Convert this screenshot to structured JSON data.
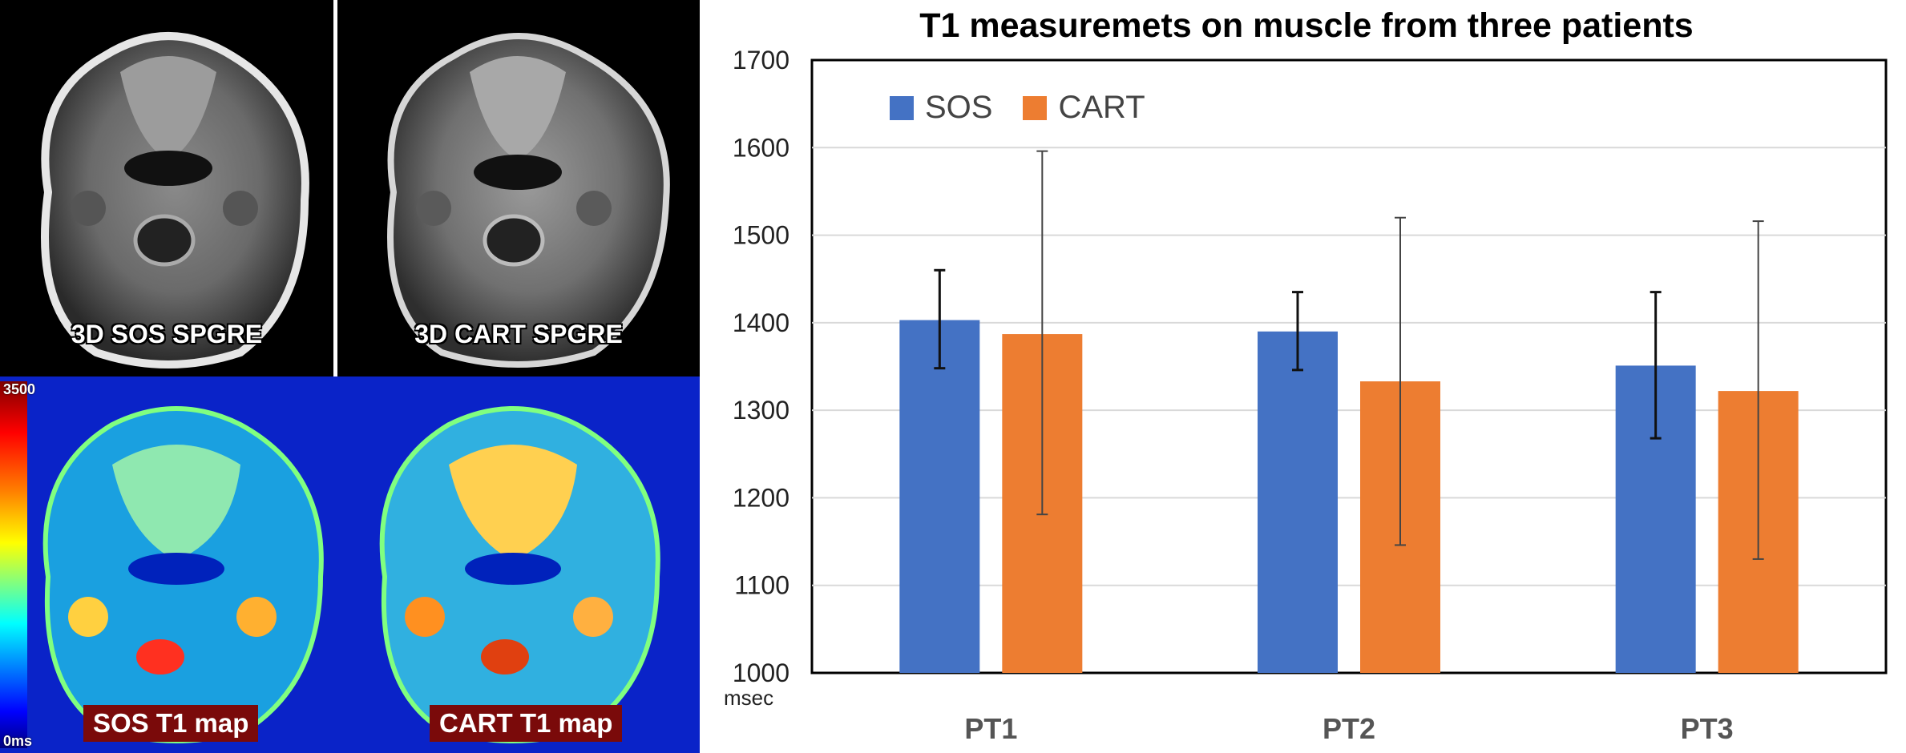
{
  "images": {
    "top_left_label": "3D SOS SPGRE",
    "top_right_label": "3D CART SPGRE",
    "colorbar_max": "3500",
    "colorbar_min": "0ms",
    "map_left_label": "SOS T1 map",
    "map_right_label": "CART T1 map"
  },
  "chart_data": {
    "type": "bar",
    "title": "T1 measuremets on muscle from three patients",
    "ylabel": "msec",
    "ylim": [
      1000,
      1700
    ],
    "yticks": [
      1000,
      1100,
      1200,
      1300,
      1400,
      1500,
      1600,
      1700
    ],
    "categories": [
      "PT1",
      "PT2",
      "PT3"
    ],
    "grid": true,
    "legend_position": "top-left",
    "series": [
      {
        "name": "SOS",
        "color": "#4472c4",
        "values": [
          1403,
          1390,
          1351
        ],
        "error_low": [
          1348,
          1346,
          1268
        ],
        "error_high": [
          1460,
          1435,
          1435
        ]
      },
      {
        "name": "CART",
        "color": "#ed7d31",
        "values": [
          1387,
          1333,
          1322
        ],
        "error_low": [
          1181,
          1146,
          1130
        ],
        "error_high": [
          1596,
          1520,
          1516
        ]
      }
    ]
  }
}
